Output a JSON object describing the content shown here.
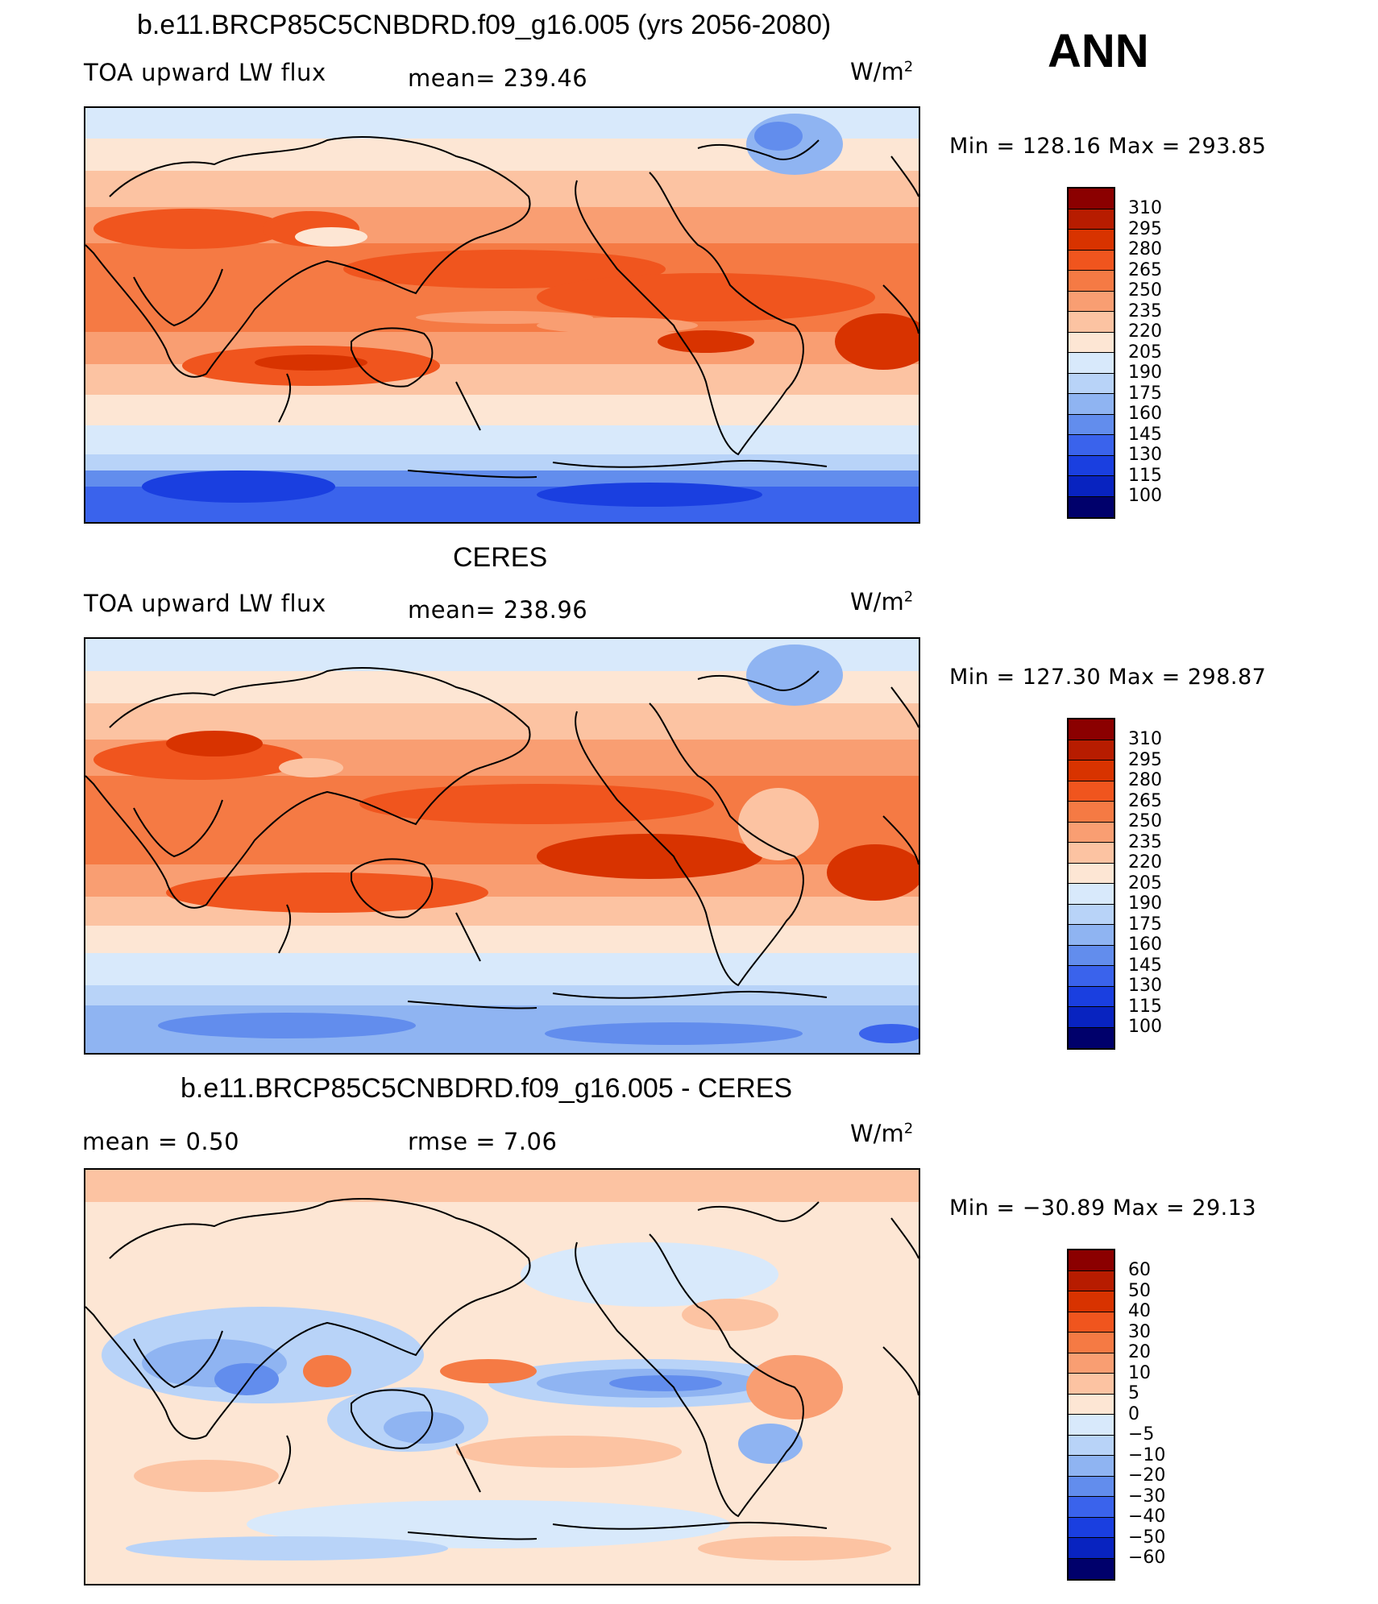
{
  "header": {
    "ann_label": "ANN"
  },
  "panels": [
    {
      "title": "b.e11.BRCP85C5CNBDRD.f09_g16.005 (yrs 2056-2080)",
      "left_label": "TOA upward LW flux",
      "center_label": "mean=  239.46",
      "units": "W/m",
      "units_sup": "2",
      "stats": "Min  =  128.16  Max  =  293.85",
      "type": "absolute"
    },
    {
      "title": "CERES",
      "left_label": "TOA upward LW flux",
      "center_label": "mean=  238.96",
      "units": "W/m",
      "units_sup": "2",
      "stats": "Min  =  127.30  Max  =  298.87",
      "type": "absolute"
    },
    {
      "title": "b.e11.BRCP85C5CNBDRD.f09_g16.005 - CERES",
      "left_label": "mean  =      0.50",
      "center_label": "rmse  =      7.06",
      "units": "W/m",
      "units_sup": "2",
      "stats": "Min  =  −30.89  Max  =    29.13",
      "type": "difference"
    }
  ],
  "colorbars": {
    "absolute": {
      "ticks": [
        "310",
        "295",
        "280",
        "265",
        "250",
        "235",
        "220",
        "205",
        "190",
        "175",
        "160",
        "145",
        "130",
        "115",
        "100"
      ],
      "colors": [
        "#8b0000",
        "#b71c00",
        "#d83300",
        "#f0551e",
        "#f57a44",
        "#f99e72",
        "#fcc3a2",
        "#fde6d4",
        "#d8e9fb",
        "#b8d3f8",
        "#8fb4f2",
        "#628ded",
        "#3a63ec",
        "#1a3fe0",
        "#0823c0",
        "#00006b"
      ]
    },
    "difference": {
      "ticks": [
        "60",
        "50",
        "40",
        "30",
        "20",
        "10",
        "5",
        "0",
        "−5",
        "−10",
        "−20",
        "−30",
        "−40",
        "−50",
        "−60"
      ],
      "colors": [
        "#8b0000",
        "#b71c00",
        "#d83300",
        "#f0551e",
        "#f57a44",
        "#f99e72",
        "#fcc3a2",
        "#fde6d4",
        "#d8e9fb",
        "#b8d3f8",
        "#8fb4f2",
        "#628ded",
        "#3a63ec",
        "#1a3fe0",
        "#0823c0",
        "#00006b"
      ]
    }
  }
}
